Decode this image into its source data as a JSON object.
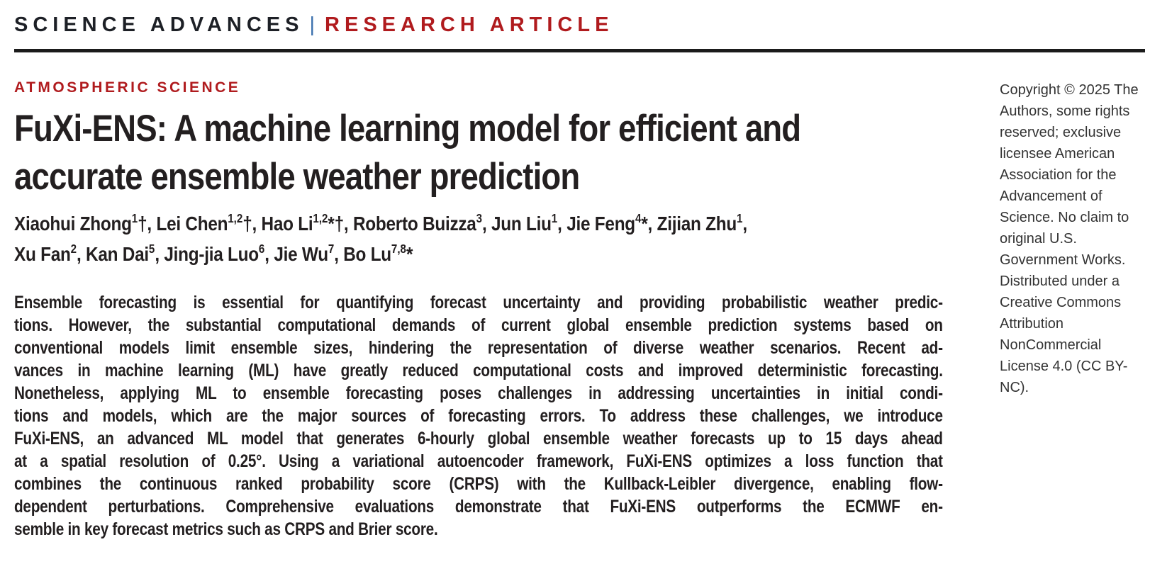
{
  "masthead": {
    "journal": "SCIENCE ADVANCES",
    "separator": "|",
    "article_type": "RESEARCH ARTICLE"
  },
  "section_label": "ATMOSPHERIC SCIENCE",
  "title": {
    "lines": [
      "FuXi-ENS: A machine learning model for efficient and",
      "accurate ensemble weather prediction"
    ]
  },
  "authors": {
    "lines": [
      [
        {
          "t": "Xiaohui Zhong"
        },
        {
          "s": "1"
        },
        {
          "t": "†, Lei Chen"
        },
        {
          "s": "1,2"
        },
        {
          "t": "†, Hao Li"
        },
        {
          "s": "1,2"
        },
        {
          "t": "*†, Roberto Buizza"
        },
        {
          "s": "3"
        },
        {
          "t": ", Jun Liu"
        },
        {
          "s": "1"
        },
        {
          "t": ", Jie Feng"
        },
        {
          "s": "4"
        },
        {
          "t": "*, Zijian Zhu"
        },
        {
          "s": "1"
        },
        {
          "t": ","
        }
      ],
      [
        {
          "t": "Xu Fan"
        },
        {
          "s": "2"
        },
        {
          "t": ", Kan Dai"
        },
        {
          "s": "5"
        },
        {
          "t": ", Jing-jia Luo"
        },
        {
          "s": "6"
        },
        {
          "t": ", Jie Wu"
        },
        {
          "s": "7"
        },
        {
          "t": ", Bo Lu"
        },
        {
          "s": "7,8"
        },
        {
          "t": "*"
        }
      ]
    ]
  },
  "abstract": {
    "lines": [
      "Ensemble forecasting is essential for quantifying forecast uncertainty and providing probabilistic weather predic-",
      "tions. However, the substantial computational demands of current global ensemble prediction systems based on",
      "conventional models limit ensemble sizes, hindering the representation of diverse weather scenarios. Recent ad-",
      "vances in machine learning (ML) have greatly reduced computational costs and improved deterministic forecasting.",
      "Nonetheless, applying ML to ensemble forecasting poses challenges in addressing uncertainties in initial condi-",
      "tions and models, which are the major sources of forecasting errors. To address these challenges, we introduce",
      "FuXi-ENS, an advanced ML model that generates 6-hourly global ensemble weather forecasts up to 15 days ahead",
      "at a spatial resolution of 0.25°. Using a variational autoencoder framework, FuXi-ENS optimizes a loss function that",
      "combines the continuous ranked probability score (CRPS) with the Kullback-Leibler divergence, enabling flow-",
      "dependent perturbations. Comprehensive evaluations demonstrate that FuXi-ENS outperforms the ECMWF en-",
      "semble in key forecast metrics such as CRPS and Brier score."
    ]
  },
  "copyright": {
    "text": "Copyright © 2025 The\nAuthors, some rights\nreserved; exclusive\nlicensee American\nAssociation for the\nAdvancement of\nScience. No claim to\noriginal U.S.\nGovernment Works.\nDistributed under a\nCreative Commons\nAttribution\nNonCommercial\nLicense 4.0 (CC BY-NC)."
  },
  "colors": {
    "accent_red": "#b01b1e",
    "separator_blue": "#3a6fad",
    "rule_black": "#1b1b1b",
    "text_black": "#231f20",
    "sidebar_text": "#333333"
  }
}
